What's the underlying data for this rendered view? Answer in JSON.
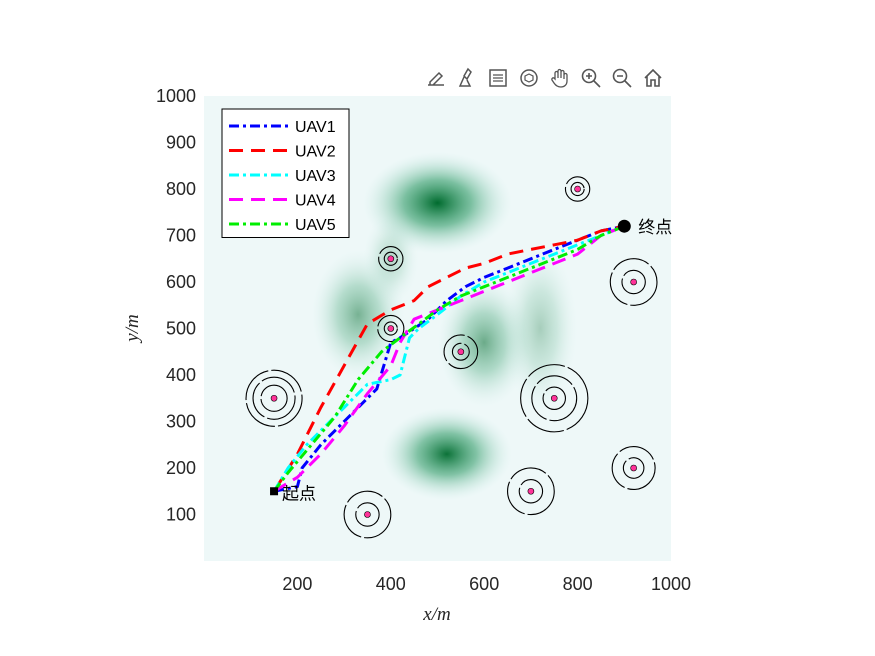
{
  "toolbar": {
    "icons": [
      "edit-icon",
      "brush-icon",
      "legend-icon",
      "rotate-3d-icon",
      "pan-icon",
      "zoom-in-icon",
      "zoom-out-icon",
      "home-icon"
    ]
  },
  "chart_data": {
    "type": "line",
    "title": "",
    "xlabel": "x/m",
    "ylabel": "y/m",
    "xlim": [
      0,
      1000
    ],
    "ylim": [
      0,
      1000
    ],
    "xticks": [
      200,
      400,
      600,
      800,
      1000
    ],
    "yticks": [
      100,
      200,
      300,
      400,
      500,
      600,
      700,
      800,
      900,
      1000
    ],
    "legend_position": "top-left",
    "grid": false,
    "terrain": [
      {
        "x": 500,
        "y": 770,
        "sx": 80,
        "sy": 55,
        "a": 1.0
      },
      {
        "x": 520,
        "y": 230,
        "sx": 70,
        "sy": 50,
        "a": 0.95
      },
      {
        "x": 600,
        "y": 470,
        "sx": 50,
        "sy": 70,
        "a": 0.55
      },
      {
        "x": 330,
        "y": 530,
        "sx": 50,
        "sy": 70,
        "a": 0.5
      },
      {
        "x": 720,
        "y": 500,
        "sx": 40,
        "sy": 90,
        "a": 0.3
      },
      {
        "x": 400,
        "y": 650,
        "sx": 30,
        "sy": 50,
        "a": 0.25
      }
    ],
    "threats": [
      {
        "x": 150,
        "y": 350,
        "rings": [
          28,
          45,
          60
        ]
      },
      {
        "x": 400,
        "y": 650,
        "rings": [
          14,
          26
        ]
      },
      {
        "x": 400,
        "y": 500,
        "rings": [
          14,
          28
        ]
      },
      {
        "x": 550,
        "y": 450,
        "rings": [
          18,
          36
        ]
      },
      {
        "x": 750,
        "y": 350,
        "rings": [
          24,
          48,
          72
        ]
      },
      {
        "x": 800,
        "y": 800,
        "rings": [
          14,
          26
        ]
      },
      {
        "x": 920,
        "y": 600,
        "rings": [
          25,
          50
        ]
      },
      {
        "x": 920,
        "y": 200,
        "rings": [
          22,
          46
        ]
      },
      {
        "x": 700,
        "y": 150,
        "rings": [
          25,
          50
        ]
      },
      {
        "x": 350,
        "y": 100,
        "rings": [
          25,
          50
        ]
      }
    ],
    "series": [
      {
        "name": "UAV1",
        "color": "#0000ff",
        "dash": "10,4,3,4",
        "x": [
          150,
          200,
          210,
          250,
          300,
          350,
          370,
          400,
          420,
          450,
          480,
          520,
          560,
          600,
          650,
          700,
          750,
          800,
          850,
          900
        ],
        "y": [
          150,
          160,
          200,
          250,
          300,
          350,
          370,
          470,
          480,
          500,
          520,
          560,
          590,
          610,
          630,
          650,
          670,
          690,
          710,
          720
        ]
      },
      {
        "name": "UAV2",
        "color": "#ff0000",
        "dash": "14,8",
        "x": [
          150,
          200,
          250,
          300,
          350,
          400,
          450,
          480,
          520,
          560,
          600,
          650,
          700,
          750,
          800,
          850,
          900
        ],
        "y": [
          150,
          230,
          330,
          420,
          510,
          540,
          560,
          590,
          610,
          630,
          640,
          660,
          670,
          680,
          690,
          710,
          720
        ]
      },
      {
        "name": "UAV3",
        "color": "#00ffff",
        "dash": "10,4,3,4",
        "x": [
          150,
          180,
          220,
          260,
          300,
          350,
          400,
          420,
          440,
          460,
          500,
          550,
          600,
          650,
          700,
          750,
          800,
          850,
          900
        ],
        "y": [
          150,
          200,
          250,
          290,
          330,
          380,
          390,
          400,
          480,
          500,
          530,
          570,
          600,
          620,
          640,
          660,
          680,
          700,
          720
        ]
      },
      {
        "name": "UAV4",
        "color": "#ff00ff",
        "dash": "14,8",
        "x": [
          150,
          200,
          250,
          300,
          350,
          400,
          420,
          450,
          500,
          550,
          600,
          650,
          700,
          750,
          800,
          850,
          900
        ],
        "y": [
          150,
          180,
          230,
          290,
          360,
          420,
          470,
          520,
          540,
          560,
          580,
          600,
          620,
          640,
          660,
          700,
          720
        ]
      },
      {
        "name": "UAV5",
        "color": "#00ee00",
        "dash": "10,4,3,4",
        "x": [
          150,
          180,
          230,
          280,
          330,
          380,
          420,
          460,
          500,
          550,
          600,
          650,
          700,
          750,
          800,
          850,
          900
        ],
        "y": [
          150,
          190,
          250,
          310,
          390,
          450,
          480,
          510,
          540,
          570,
          590,
          610,
          630,
          650,
          670,
          700,
          720
        ]
      }
    ],
    "start": {
      "x": 150,
      "y": 150,
      "label": "起点"
    },
    "end": {
      "x": 900,
      "y": 720,
      "label": "终点"
    }
  }
}
